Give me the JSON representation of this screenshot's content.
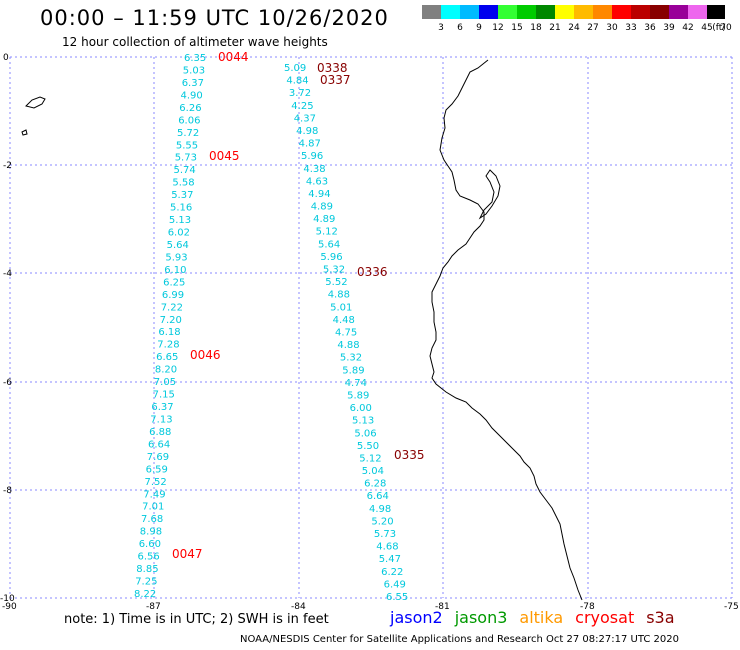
{
  "header": {
    "title": "00:00 – 11:59 UTC 10/26/2020",
    "subtitle": "12 hour collection of altimeter wave heights"
  },
  "legend": {
    "colors": [
      "#808080",
      "#00ffff",
      "#00bbff",
      "#0000ee",
      "#33ff33",
      "#00cc00",
      "#008800",
      "#ffff00",
      "#ffbb00",
      "#ff8800",
      "#ff0000",
      "#bb0000",
      "#880000",
      "#990099",
      "#ee66ee",
      "#000000"
    ],
    "labels": [
      "3",
      "6",
      "9",
      "12",
      "15",
      "18",
      "21",
      "24",
      "27",
      "30",
      "33",
      "36",
      "39",
      "42",
      "45",
      "70"
    ],
    "unit": "(ft)"
  },
  "axes": {
    "lat_labels": [
      "0",
      "-2",
      "-4",
      "-6",
      "-8",
      "-10"
    ],
    "lon_labels": [
      "-90",
      "-87",
      "-84",
      "-81",
      "-78",
      "-75"
    ]
  },
  "tracks": {
    "west_values": [
      "6.35",
      "5.03",
      "6.37",
      "4.90",
      "6.26",
      "6.06",
      "5.72",
      "5.55",
      "5.73",
      "5.74",
      "5.58",
      "5.37",
      "5.16",
      "5.13",
      "6.02",
      "5.64",
      "5.93",
      "6.10",
      "6.25",
      "6.99",
      "7.22",
      "7.20",
      "6.18",
      "7.28",
      "6.65",
      "8.20",
      "7.05",
      "7.15",
      "6.37",
      "7.13",
      "6.88",
      "6.64",
      "7.69",
      "6.59",
      "7.52",
      "7.49",
      "7.01",
      "7.68",
      "8.98",
      "6.60",
      "6.56",
      "8.85",
      "7.25",
      "8.22"
    ],
    "east_values": [
      "5.09",
      "4.84",
      "3.72",
      "4.25",
      "4.37",
      "4.98",
      "4.87",
      "5.96",
      "4.38",
      "4.63",
      "4.94",
      "4.89",
      "4.89",
      "5.12",
      "5.64",
      "5.96",
      "5.32",
      "5.52",
      "4.88",
      "5.01",
      "4.48",
      "4.75",
      "4.88",
      "5.32",
      "5.89",
      "4.74",
      "5.89",
      "6.00",
      "5.13",
      "5.06",
      "5.50",
      "5.12",
      "5.04",
      "6.28",
      "6.64",
      "4.98",
      "5.20",
      "5.73",
      "4.68",
      "5.47",
      "6.22",
      "6.49",
      "6.55"
    ],
    "west_times": [
      "0044",
      "0045",
      "0046",
      "0047"
    ],
    "east_times": [
      "0338",
      "0337",
      "0336",
      "0335"
    ]
  },
  "notes": {
    "note": "note:  1) Time is in UTC;  2) SWH is in feet",
    "satellites": [
      {
        "name": "jason2",
        "color": "#0000ff"
      },
      {
        "name": "jason3",
        "color": "#009900"
      },
      {
        "name": "altika",
        "color": "#ff9900"
      },
      {
        "name": "cryosat",
        "color": "#ff0000"
      },
      {
        "name": "s3a",
        "color": "#880000"
      }
    ],
    "footer": "NOAA/NESDIS Center for Satellite Applications and Research     Oct 27 08:27:17 UTC 2020"
  }
}
